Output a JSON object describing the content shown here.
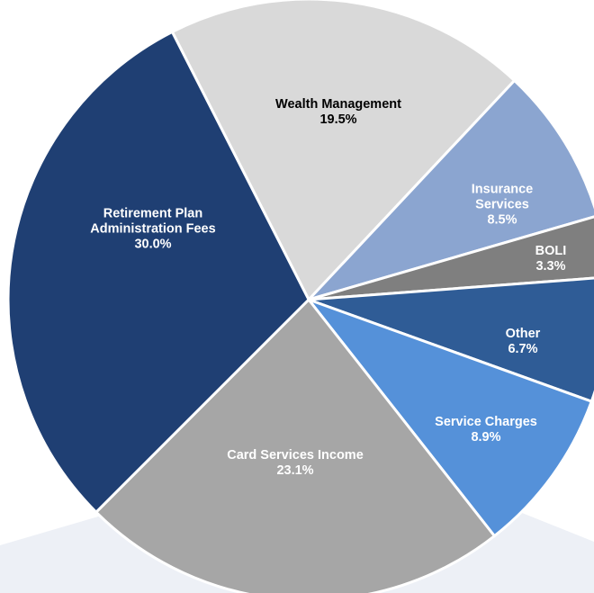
{
  "chart_data": {
    "type": "pie",
    "categories": [
      "Wealth Management",
      "Insurance Services",
      "BOLI",
      "Other",
      "Service Charges",
      "Card Services Income",
      "Retirement Plan Administration Fees"
    ],
    "values": [
      19.5,
      8.5,
      3.3,
      6.7,
      8.9,
      23.1,
      30.0
    ],
    "value_labels": [
      "19.5%",
      "8.5%",
      "3.3%",
      "6.7%",
      "8.9%",
      "23.1%",
      "30.0%"
    ],
    "colors": [
      "#d9d9d9",
      "#8ba5d0",
      "#7f7f7f",
      "#2f5c96",
      "#5591d9",
      "#a6a6a6",
      "#1f3f73"
    ]
  }
}
